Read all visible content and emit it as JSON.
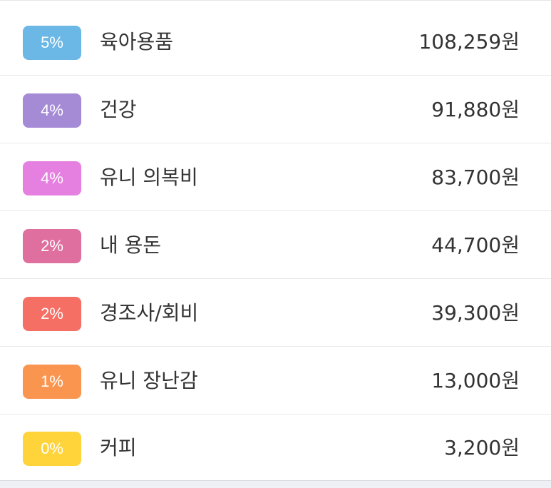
{
  "categories": [
    {
      "percent": "5%",
      "name": "육아용품",
      "amount": "108,259원",
      "color": "#6bb8e6"
    },
    {
      "percent": "4%",
      "name": "건강",
      "amount": "91,880원",
      "color": "#a58ad6"
    },
    {
      "percent": "4%",
      "name": "유니 의복비",
      "amount": "83,700원",
      "color": "#e57fe0"
    },
    {
      "percent": "2%",
      "name": "내 용돈",
      "amount": "44,700원",
      "color": "#de6f9f"
    },
    {
      "percent": "2%",
      "name": "경조사/회비",
      "amount": "39,300원",
      "color": "#f56f64"
    },
    {
      "percent": "1%",
      "name": "유니 장난감",
      "amount": "13,000원",
      "color": "#fa954f"
    },
    {
      "percent": "0%",
      "name": "커피",
      "amount": "3,200원",
      "color": "#ffd43a"
    }
  ]
}
